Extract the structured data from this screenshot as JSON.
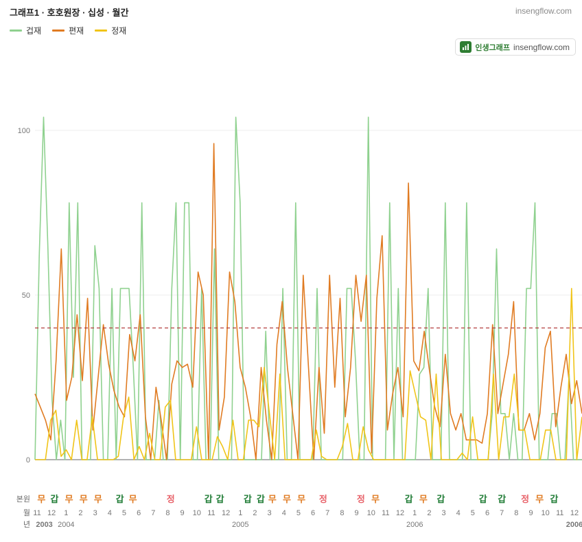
{
  "header": {
    "title": "그래프1 · 호호원장 · 십성 · 월간",
    "site": "insengflow.com"
  },
  "badge": {
    "name": "인생그래프",
    "site": "insengflow.com"
  },
  "colors": {
    "geobjae": "#8fd18f",
    "pyeonjae": "#e07b22",
    "jeongjae": "#f0c418",
    "reference": "#b23a3a",
    "gap": "#1e7b34",
    "mu": "#e07b22",
    "jeong": "#e8646b"
  },
  "chart_data": {
    "type": "line",
    "title": "그래프1 · 호호원장 · 십성 · 월간",
    "ylim": [
      -0.3,
      108
    ],
    "yticks": [
      0,
      50,
      100
    ],
    "reference_line": 40,
    "grid": true,
    "legend_position": "top-left",
    "x_month_labels": [
      "11",
      "12",
      "1",
      "2",
      "3",
      "4",
      "5",
      "6",
      "7",
      "8",
      "9",
      "10",
      "11",
      "12",
      "1",
      "2",
      "3",
      "4",
      "5",
      "6",
      "7",
      "8",
      "9",
      "10",
      "11",
      "12",
      "1",
      "2",
      "3",
      "4",
      "5",
      "6",
      "7",
      "8",
      "9",
      "10",
      "11",
      "12"
    ],
    "x_year_labels": [
      {
        "label": "2003",
        "at": 0.5
      },
      {
        "label": "2004",
        "at": 2
      },
      {
        "label": "2005",
        "at": 14
      },
      {
        "label": "2006",
        "at": 26
      },
      {
        "label": "2006",
        "at": 37
      }
    ],
    "row_labels": {
      "bonwon": "본원",
      "month": "월",
      "year": "년"
    },
    "bonwon_marks": [
      "무",
      "갑",
      "무",
      "무",
      "무",
      "",
      "갑",
      "무",
      "",
      "",
      "정",
      "",
      "",
      "갑",
      "갑",
      "",
      "갑",
      "갑",
      "무",
      "무",
      "무",
      "",
      "정",
      "",
      "",
      "정",
      "무",
      "",
      "갑",
      "무",
      "",
      "갑",
      "",
      "",
      "갑",
      "",
      "갑",
      "",
      "정",
      "무",
      "갑"
    ],
    "bonwon_positions": [
      0.3,
      1.2,
      2.2,
      3.2,
      4.2,
      null,
      5.7,
      6.6,
      null,
      null,
      9.2,
      null,
      null,
      11.8,
      12.6,
      null,
      14.5,
      15.4,
      16.2,
      17.2,
      18.2,
      null,
      19.7,
      null,
      null,
      22.3,
      23.3,
      null,
      25.6,
      26.6,
      null,
      27.8,
      null,
      null,
      30.7,
      null,
      32,
      null,
      33.6,
      34.6,
      35.6
    ],
    "series": [
      {
        "name": "겁재",
        "color": "#8fd18f",
        "values": [
          0,
          62,
          104,
          65,
          18,
          0,
          12,
          0,
          78,
          25,
          78,
          0,
          0,
          0,
          65,
          52,
          0,
          0,
          52,
          0,
          52,
          52,
          52,
          28,
          0,
          78,
          0,
          0,
          0,
          18,
          0,
          0,
          52,
          78,
          0,
          78,
          78,
          0,
          0,
          52,
          0,
          0,
          64,
          0,
          0,
          0,
          0,
          104,
          78,
          0,
          0,
          0,
          0,
          0,
          39,
          0,
          0,
          0,
          52,
          0,
          0,
          78,
          0,
          0,
          0,
          0,
          52,
          0,
          0,
          0,
          0,
          0,
          0,
          52,
          52,
          30,
          0,
          0,
          104,
          0,
          0,
          0,
          0,
          78,
          0,
          52,
          0,
          0,
          0,
          0,
          26,
          28,
          52,
          0,
          0,
          0,
          78,
          0,
          0,
          0,
          0,
          78,
          0,
          0,
          0,
          0,
          0,
          14,
          64,
          14,
          14,
          0,
          14,
          0,
          0,
          52,
          52,
          78,
          0,
          0,
          0,
          14,
          14,
          0,
          0,
          26,
          0,
          0,
          0
        ]
      },
      {
        "name": "편재",
        "color": "#e07b22",
        "values": [
          20,
          16,
          12,
          6,
          30,
          64,
          18,
          25,
          44,
          24,
          49,
          9,
          25,
          41,
          29,
          21,
          16,
          13,
          38,
          30,
          44,
          13,
          0,
          22,
          12,
          0,
          23,
          30,
          28,
          29,
          22,
          57,
          50,
          0,
          96,
          9,
          19,
          57,
          48,
          28,
          22,
          13,
          0,
          28,
          12,
          0,
          35,
          48,
          28,
          14,
          0,
          56,
          28,
          0,
          28,
          8,
          56,
          22,
          49,
          13,
          28,
          56,
          42,
          56,
          2,
          49,
          68,
          9,
          20,
          28,
          13,
          84,
          30,
          27,
          39,
          27,
          16,
          10,
          32,
          14,
          9,
          14,
          6,
          6,
          6,
          5,
          14,
          41,
          14,
          23,
          32,
          48,
          9,
          9,
          14,
          6,
          14,
          34,
          39,
          10,
          22,
          32,
          17,
          24,
          14
        ]
      },
      {
        "name": "정재",
        "color": "#f0c418",
        "values": [
          0,
          0,
          0,
          12,
          15,
          1,
          3,
          0,
          12,
          0,
          0,
          13,
          0,
          0,
          0,
          0,
          1,
          13,
          19,
          0,
          4,
          0,
          8,
          0,
          0,
          16,
          18,
          0,
          0,
          0,
          0,
          10,
          0,
          0,
          0,
          7,
          4,
          0,
          12,
          0,
          0,
          12,
          12,
          10,
          28,
          14,
          0,
          26,
          0,
          0,
          0,
          0,
          0,
          0,
          9,
          1,
          0,
          0,
          0,
          4,
          11,
          0,
          0,
          10,
          3,
          0,
          0,
          0,
          0,
          0,
          0,
          0,
          27,
          20,
          13,
          12,
          0,
          26,
          0,
          0,
          0,
          0,
          2,
          0,
          13,
          0,
          0,
          0,
          26,
          0,
          13,
          13,
          26,
          9,
          9,
          0,
          0,
          0,
          9,
          9,
          0,
          0,
          0,
          52,
          0,
          13
        ]
      }
    ]
  }
}
